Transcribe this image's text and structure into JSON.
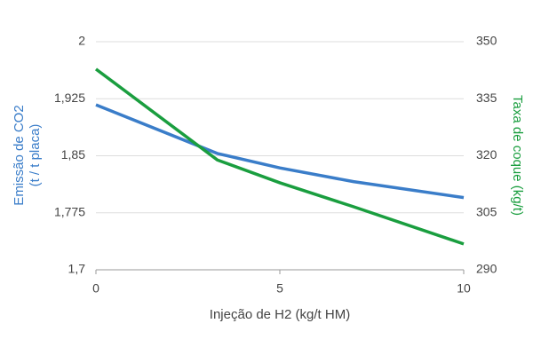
{
  "chart_data": {
    "type": "line",
    "xlabel": "Injeção de H2 (kg/t HM)",
    "ylabel": [
      "Emissão de CO2",
      "(t / t placa)"
    ],
    "y2label": "Taxa de coque (kg/t)",
    "x": [
      0,
      3.3,
      5,
      7,
      10
    ],
    "series": [
      {
        "color": "#3a7dc9",
        "values": [
          1.917,
          1.853,
          1.834,
          1.816,
          1.795
        ]
      },
      {
        "color": "#1a9e3f",
        "axis": "y2",
        "values": [
          342.8,
          318.9,
          312.9,
          306.6,
          296.8
        ]
      }
    ],
    "xlim": [
      0,
      10
    ],
    "xticks": [
      0,
      5,
      10
    ],
    "ylim": [
      1.7,
      2
    ],
    "yticks": [
      {
        "value": 1.7,
        "label": "1,7"
      },
      {
        "value": 1.775,
        "label": "1,775"
      },
      {
        "value": 1.85,
        "label": "1,85"
      },
      {
        "value": 1.925,
        "label": "1,925"
      },
      2
    ],
    "y2lim": [
      290,
      350
    ],
    "y2ticks": [
      290,
      305,
      320,
      335,
      350
    ],
    "grid": true
  }
}
